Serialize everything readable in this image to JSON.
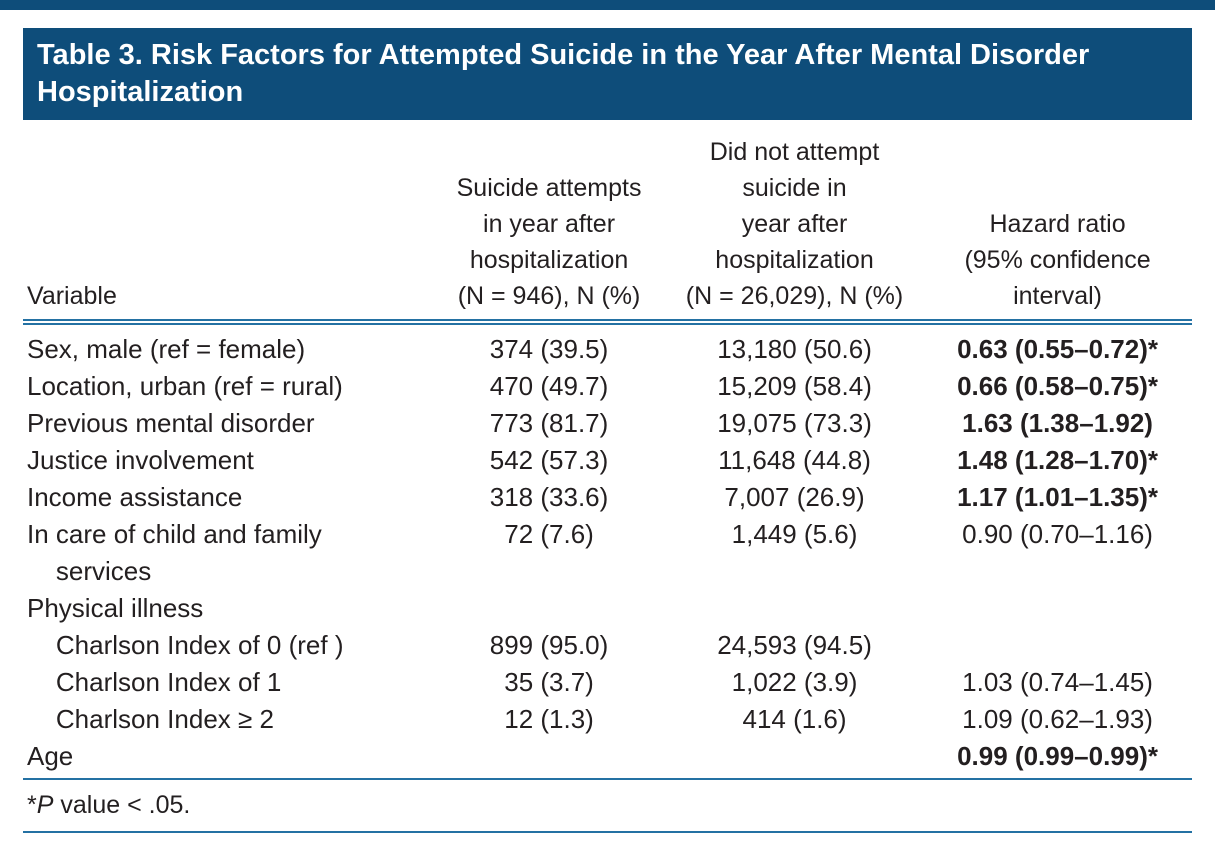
{
  "page": {
    "accent_color": "#0e4d7a",
    "rule_color": "#2471a3",
    "text_color": "#231f20"
  },
  "table": {
    "title": "Table 3. Risk Factors for Attempted Suicide in the Year After Mental Disorder Hospitalization",
    "columns": [
      {
        "label": "Variable"
      },
      {
        "label": "Suicide attempts\nin year after\nhospitalization\n(N = 946), N (%)"
      },
      {
        "label": "Did not attempt\nsuicide in\nyear after\nhospitalization\n(N = 26,029), N (%)"
      },
      {
        "label": "Hazard ratio\n(95% confidence\ninterval)"
      }
    ],
    "rows": [
      {
        "variable": "Sex, male (ref = female)",
        "attempts": "374 (39.5)",
        "did_not_attempt": "13,180 (50.6)",
        "hazard_ratio": "0.63 (0.55–0.72)*",
        "significant_bold": true
      },
      {
        "variable": "Location, urban (ref = rural)",
        "attempts": "470 (49.7)",
        "did_not_attempt": "15,209 (58.4)",
        "hazard_ratio": "0.66 (0.58–0.75)*",
        "significant_bold": true
      },
      {
        "variable": "Previous mental disorder",
        "attempts": "773 (81.7)",
        "did_not_attempt": "19,075 (73.3)",
        "hazard_ratio": "1.63 (1.38–1.92)",
        "significant_bold": true
      },
      {
        "variable": "Justice involvement",
        "attempts": "542 (57.3)",
        "did_not_attempt": "11,648 (44.8)",
        "hazard_ratio": "1.48 (1.28–1.70)*",
        "significant_bold": true
      },
      {
        "variable": "Income assistance",
        "attempts": "318 (33.6)",
        "did_not_attempt": "7,007 (26.9)",
        "hazard_ratio": "1.17 (1.01–1.35)*",
        "significant_bold": true
      },
      {
        "variable": "In care of child and family\n    services",
        "attempts": "72 (7.6)",
        "did_not_attempt": "1,449 (5.6)",
        "hazard_ratio": "0.90 (0.70–1.16)",
        "significant_bold": false
      },
      {
        "variable": "Physical illness",
        "attempts": "",
        "did_not_attempt": "",
        "hazard_ratio": "",
        "significant_bold": false
      },
      {
        "variable": "    Charlson Index of 0 (ref )",
        "attempts": "899 (95.0)",
        "did_not_attempt": "24,593 (94.5)",
        "hazard_ratio": "",
        "significant_bold": false
      },
      {
        "variable": "    Charlson Index of 1",
        "attempts": "35 (3.7)",
        "did_not_attempt": "1,022 (3.9)",
        "hazard_ratio": "1.03 (0.74–1.45)",
        "significant_bold": false
      },
      {
        "variable": "    Charlson Index ≥ 2",
        "attempts": "12 (1.3)",
        "did_not_attempt": "414 (1.6)",
        "hazard_ratio": "1.09 (0.62–1.93)",
        "significant_bold": false
      },
      {
        "variable": "Age",
        "attempts": "",
        "did_not_attempt": "",
        "hazard_ratio": "0.99 (0.99–0.99)*",
        "significant_bold": true
      }
    ],
    "footnote": {
      "star": "*",
      "italic_p": "P",
      "text": " value < .05."
    }
  }
}
